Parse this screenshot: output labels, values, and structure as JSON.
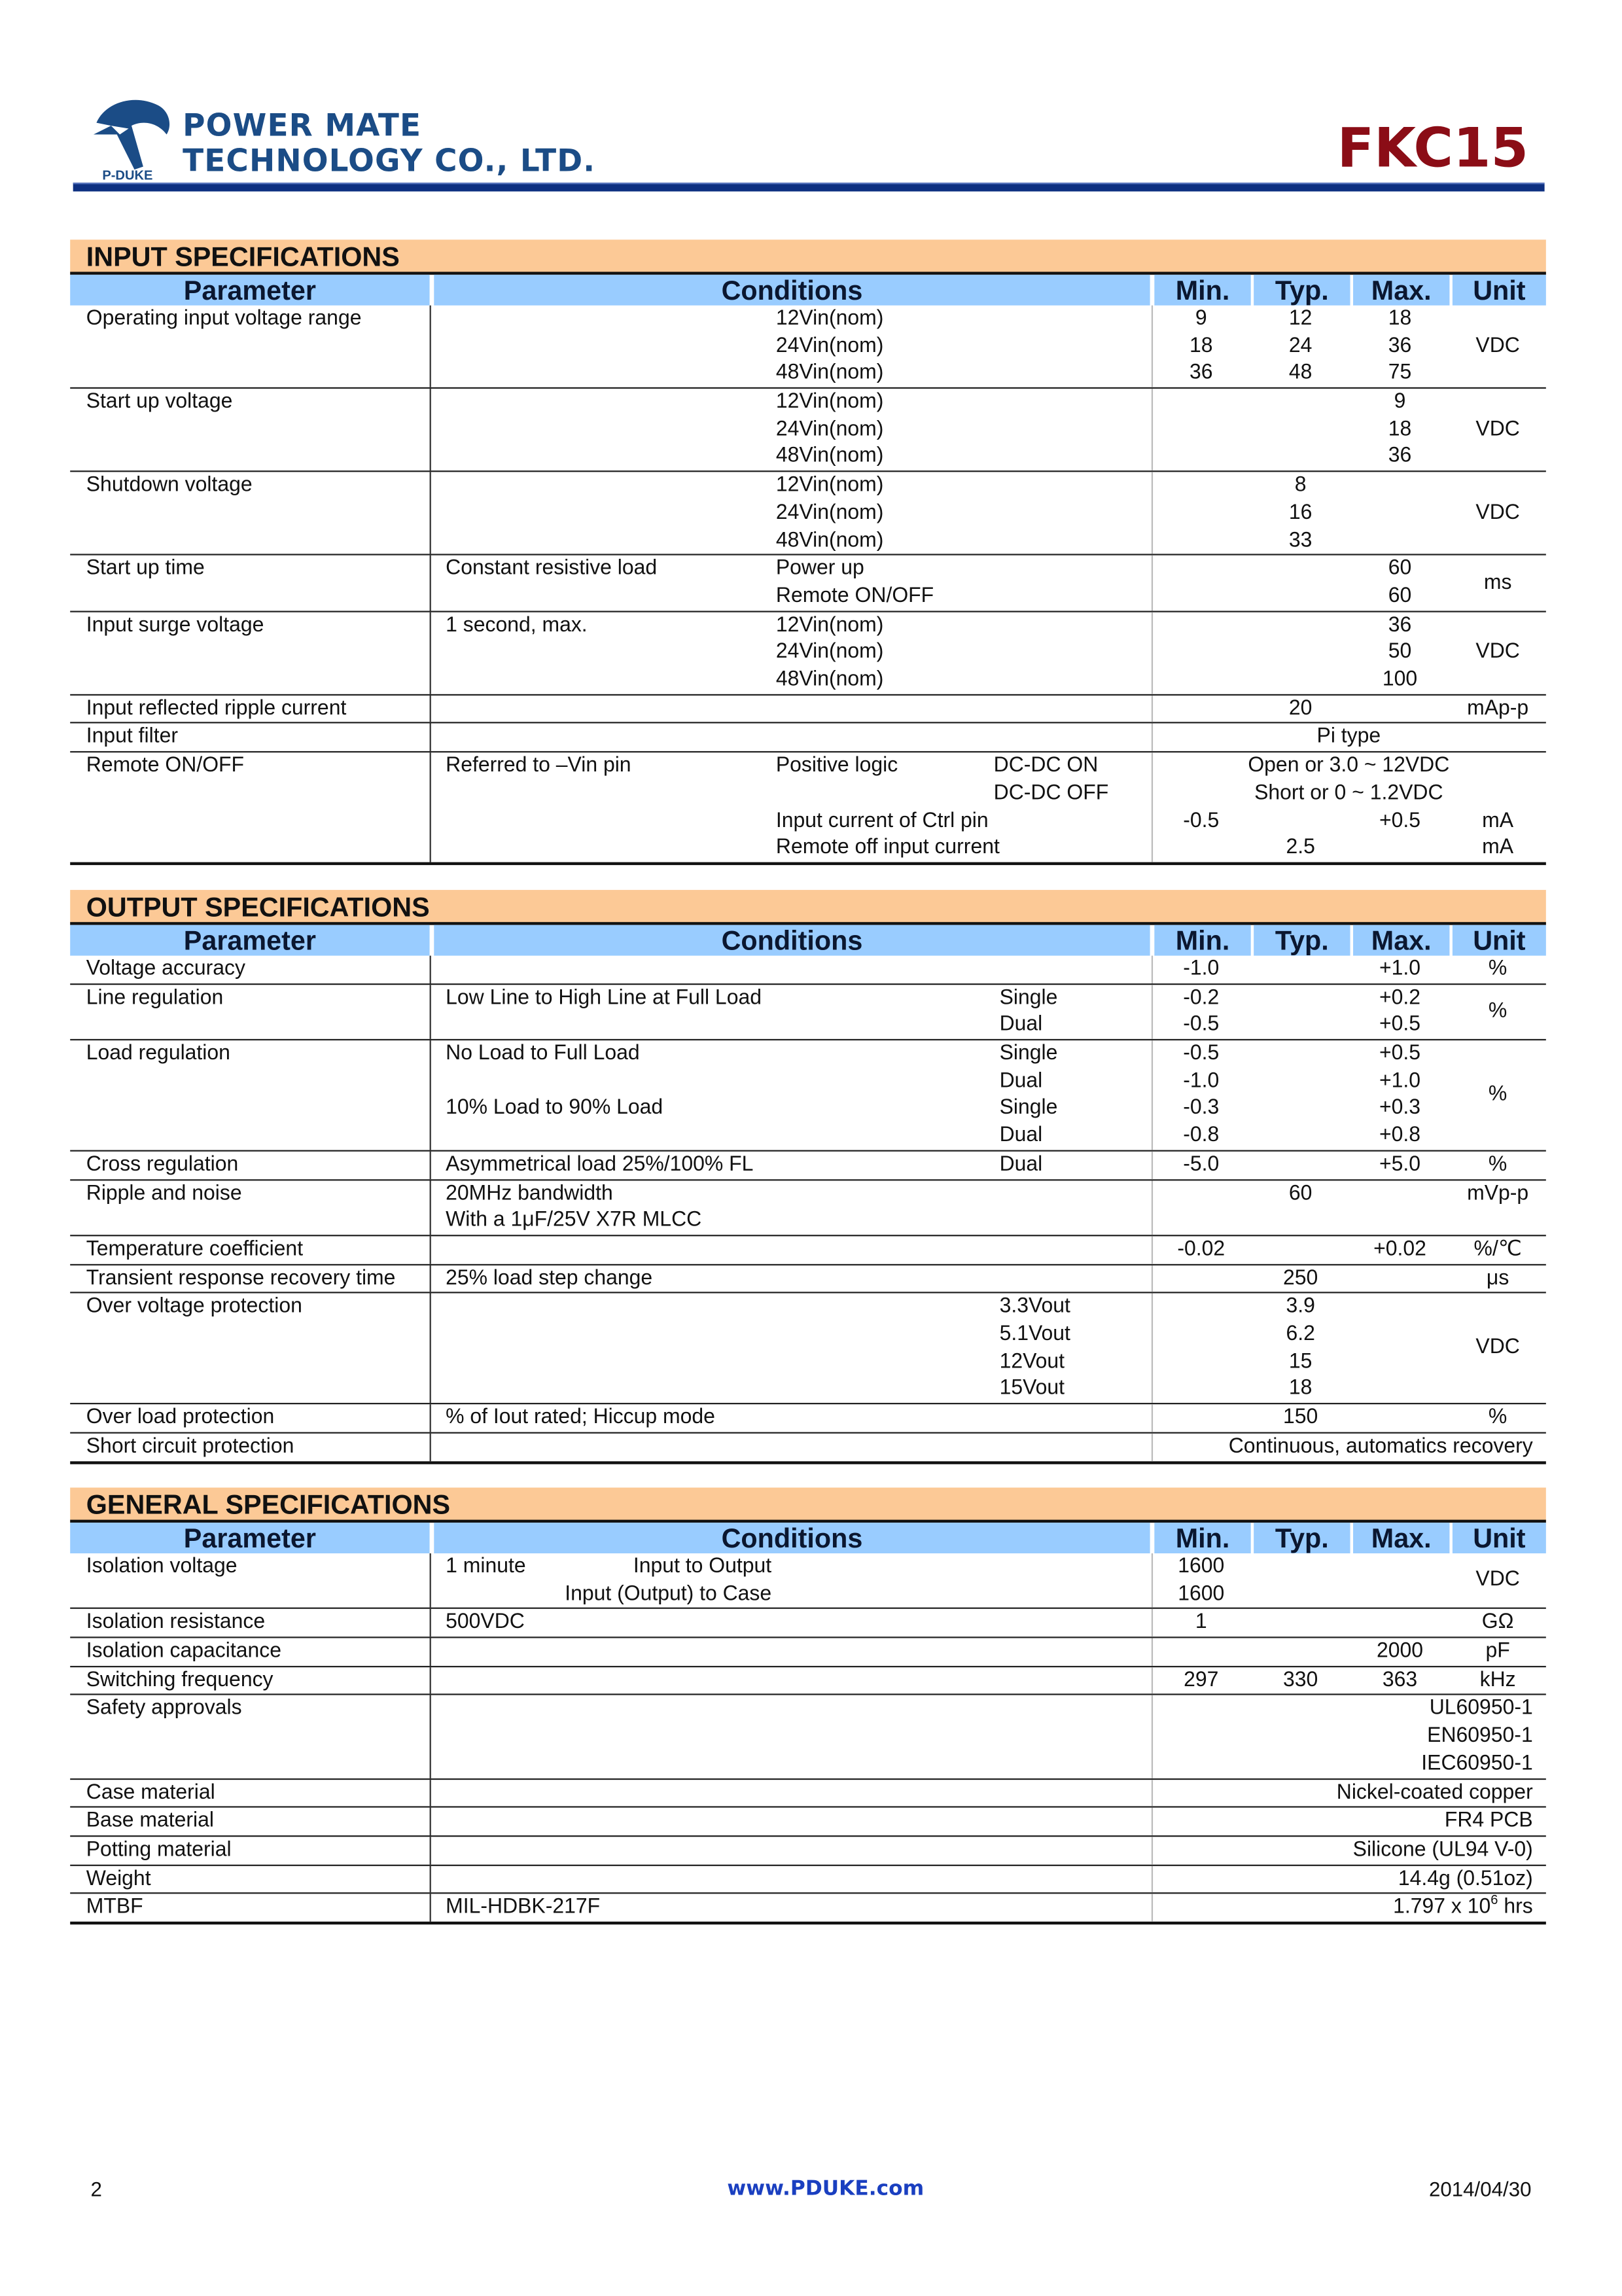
{
  "header": {
    "company_line1": "POWER MATE",
    "company_line2": "TECHNOLOGY CO., LTD.",
    "logo_text": "P-DUKE",
    "model": "FKC15",
    "colors": {
      "brand_blue": "#1b4c86",
      "model_red": "#8b0d16",
      "section_bar": "#fcc996",
      "header_row": "#99ccff"
    }
  },
  "columns": {
    "parameter": "Parameter",
    "conditions": "Conditions",
    "min": "Min.",
    "typ": "Typ.",
    "max": "Max.",
    "unit": "Unit"
  },
  "sections": [
    {
      "key": "input",
      "title": "INPUT SPECIFICATIONS",
      "rows": [
        {
          "param": "Operating input voltage range",
          "cond": [
            [
              "",
              "12Vin(nom)",
              ""
            ],
            [
              "",
              "24Vin(nom)",
              ""
            ],
            [
              "",
              "48Vin(nom)",
              ""
            ]
          ],
          "min": [
            "9",
            "18",
            "36"
          ],
          "typ": [
            "12",
            "24",
            "48"
          ],
          "max": [
            "18",
            "36",
            "75"
          ],
          "unit": "VDC"
        },
        {
          "param": "Start up voltage",
          "cond": [
            [
              "",
              "12Vin(nom)",
              ""
            ],
            [
              "",
              "24Vin(nom)",
              ""
            ],
            [
              "",
              "48Vin(nom)",
              ""
            ]
          ],
          "max": [
            "9",
            "18",
            "36"
          ],
          "unit": "VDC"
        },
        {
          "param": "Shutdown voltage",
          "cond": [
            [
              "",
              "12Vin(nom)",
              ""
            ],
            [
              "",
              "24Vin(nom)",
              ""
            ],
            [
              "",
              "48Vin(nom)",
              ""
            ]
          ],
          "typ": [
            "8",
            "16",
            "33"
          ],
          "unit": "VDC"
        },
        {
          "param": "Start up time",
          "cond": [
            [
              "Constant resistive load",
              "Power up",
              ""
            ],
            [
              "",
              "Remote ON/OFF",
              ""
            ]
          ],
          "max": [
            "60",
            "60"
          ],
          "unit": "ms"
        },
        {
          "param": "Input surge voltage",
          "cond": [
            [
              "1 second, max.",
              "12Vin(nom)",
              ""
            ],
            [
              "",
              "24Vin(nom)",
              ""
            ],
            [
              "",
              "48Vin(nom)",
              ""
            ]
          ],
          "max": [
            "36",
            "50",
            "100"
          ],
          "unit": "VDC"
        },
        {
          "param": "Input reflected ripple current",
          "typ": [
            "20"
          ],
          "unit": "mAp-p"
        },
        {
          "param": "Input filter",
          "merged": [
            "Pi type"
          ]
        },
        {
          "param": "Remote ON/OFF",
          "cond": [
            [
              "Referred to –Vin pin",
              "Positive logic",
              "DC-DC ON"
            ],
            [
              "",
              "",
              "DC-DC OFF"
            ],
            [
              "",
              "Input current of Ctrl pin",
              ""
            ],
            [
              "",
              "Remote off input current",
              ""
            ]
          ],
          "merged": [
            "Open or 3.0 ~ 12VDC",
            "Short or 0 ~ 1.2VDC",
            "",
            ""
          ],
          "min": [
            "",
            "",
            "-0.5",
            ""
          ],
          "typ": [
            "",
            "",
            "",
            "2.5"
          ],
          "max": [
            "",
            "",
            "+0.5",
            ""
          ],
          "unit": [
            "",
            "",
            "mA",
            "mA"
          ]
        }
      ]
    },
    {
      "key": "output",
      "title": "OUTPUT SPECIFICATIONS",
      "rows": [
        {
          "param": "Voltage accuracy",
          "min": [
            "-1.0"
          ],
          "max": [
            "+1.0"
          ],
          "unit": "%"
        },
        {
          "param": "Line regulation",
          "cond": [
            [
              "Low Line to High Line at Full Load",
              "",
              "Single"
            ],
            [
              "",
              "",
              "Dual"
            ]
          ],
          "min": [
            "-0.2",
            "-0.5"
          ],
          "max": [
            "+0.2",
            "+0.5"
          ],
          "unit": "%"
        },
        {
          "param": "Load regulation",
          "cond": [
            [
              "No Load to Full Load",
              "",
              "Single"
            ],
            [
              "",
              "",
              "Dual"
            ],
            [
              "10% Load to 90% Load",
              "",
              "Single"
            ],
            [
              "",
              "",
              "Dual"
            ]
          ],
          "min": [
            "-0.5",
            "-1.0",
            "-0.3",
            "-0.8"
          ],
          "max": [
            "+0.5",
            "+1.0",
            "+0.3",
            "+0.8"
          ],
          "unit": "%"
        },
        {
          "param": "Cross regulation",
          "cond": [
            [
              "Asymmetrical load 25%/100% FL",
              "",
              "Dual"
            ]
          ],
          "min": [
            "-5.0"
          ],
          "max": [
            "+5.0"
          ],
          "unit": "%"
        },
        {
          "param": "Ripple and noise",
          "cond": [
            [
              "20MHz bandwidth",
              "",
              ""
            ],
            [
              "With a 1μF/25V X7R MLCC",
              "",
              ""
            ]
          ],
          "typ": [
            "60",
            ""
          ],
          "unit": [
            "mVp-p",
            ""
          ]
        },
        {
          "param": "Temperature coefficient",
          "min": [
            "-0.02"
          ],
          "max": [
            "+0.02"
          ],
          "unit": "%/℃"
        },
        {
          "param": "Transient response recovery time",
          "cond": [
            [
              "25% load step change",
              "",
              ""
            ]
          ],
          "typ": [
            "250"
          ],
          "unit": "μs"
        },
        {
          "param": "Over voltage protection",
          "cond": [
            [
              "",
              "",
              "3.3Vout"
            ],
            [
              "",
              "",
              "5.1Vout"
            ],
            [
              "",
              "",
              "12Vout"
            ],
            [
              "",
              "",
              "15Vout"
            ]
          ],
          "typ": [
            "3.9",
            "6.2",
            "15",
            "18"
          ],
          "unit": "VDC"
        },
        {
          "param": "Over load protection",
          "cond": [
            [
              "% of Iout rated; Hiccup mode",
              "",
              ""
            ]
          ],
          "typ": [
            "150"
          ],
          "unit": "%"
        },
        {
          "param": "Short circuit protection",
          "merged": [
            "Continuous, automatics recovery"
          ]
        }
      ]
    },
    {
      "key": "general",
      "title": "GENERAL SPECIFICATIONS",
      "rows": [
        {
          "param": "Isolation voltage",
          "cond": [
            [
              "1 minute",
              "Input to Output",
              ""
            ],
            [
              "",
              "Input (Output) to Case",
              ""
            ]
          ],
          "min": [
            "1600",
            "1600"
          ],
          "unit": "VDC"
        },
        {
          "param": "Isolation resistance",
          "cond": [
            [
              "500VDC",
              "",
              ""
            ]
          ],
          "min": [
            "1"
          ],
          "unit": "GΩ"
        },
        {
          "param": "Isolation capacitance",
          "max": [
            "2000"
          ],
          "unit": "pF"
        },
        {
          "param": "Switching frequency",
          "min": [
            "297"
          ],
          "typ": [
            "330"
          ],
          "max": [
            "363"
          ],
          "unit": "kHz"
        },
        {
          "param": "Safety approvals",
          "merged": [
            "UL60950-1",
            "EN60950-1",
            "IEC60950-1"
          ]
        },
        {
          "param": "Case material",
          "merged": [
            "Nickel-coated  copper"
          ]
        },
        {
          "param": "Base material",
          "merged": [
            "FR4  PCB"
          ]
        },
        {
          "param": "Potting material",
          "merged": [
            "Silicone (UL94 V-0)"
          ]
        },
        {
          "param": "Weight",
          "merged": [
            "14.4g  (0.51oz)"
          ]
        },
        {
          "param": "MTBF",
          "cond": [
            [
              "MIL-HDBK-217F",
              "",
              ""
            ]
          ],
          "merged": [
            "1.797 x 10"
          ],
          "merged_sup": "6",
          "merged_post": " hrs"
        }
      ]
    }
  ],
  "footer": {
    "page": "2",
    "url": "www.PDUKE.com",
    "date": "2014/04/30"
  }
}
